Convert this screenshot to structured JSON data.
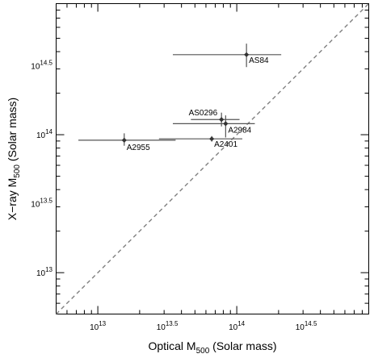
{
  "chart_data": {
    "type": "scatter",
    "title": "",
    "xlabel": {
      "base": "Optical M",
      "sub": "500",
      "rest": " (Solar mass)"
    },
    "ylabel": {
      "base": "X−ray M",
      "sub": "500",
      "rest": " (Solar mass)"
    },
    "x_scale": "log10",
    "y_scale": "log10",
    "xlim_log10": [
      12.7,
      14.95
    ],
    "ylim_log10": [
      12.7,
      14.95
    ],
    "grid": false,
    "legend": "none",
    "reference_line": {
      "style": "dashed",
      "color": "#808080",
      "relation": "y = x"
    },
    "x_ticks": [
      {
        "value_log10": 13.0,
        "base": "10",
        "exp": "13"
      },
      {
        "value_log10": 13.5,
        "base": "10",
        "exp": "13.5"
      },
      {
        "value_log10": 14.0,
        "base": "10",
        "exp": "14"
      },
      {
        "value_log10": 14.5,
        "base": "10",
        "exp": "14.5"
      }
    ],
    "y_ticks": [
      {
        "value_log10": 13.0,
        "base": "10",
        "exp": "13"
      },
      {
        "value_log10": 13.5,
        "base": "10",
        "exp": "13.5"
      },
      {
        "value_log10": 14.0,
        "base": "10",
        "exp": "14"
      },
      {
        "value_log10": 14.5,
        "base": "10",
        "exp": "14.5"
      }
    ],
    "points": [
      {
        "name": "AS84",
        "x": 14.07,
        "x_err": [
          13.54,
          14.32
        ],
        "y": 14.58,
        "y_err": [
          14.49,
          14.66
        ]
      },
      {
        "name": "AS0296",
        "x": 13.89,
        "x_err": [
          13.67,
          14.02
        ],
        "y": 14.11,
        "y_err": [
          14.06,
          14.16
        ]
      },
      {
        "name": "A2984",
        "x": 13.92,
        "x_err": [
          13.54,
          14.13
        ],
        "y": 14.08,
        "y_err": [
          13.98,
          14.14
        ]
      },
      {
        "name": "A2401",
        "x": 13.82,
        "x_err": [
          13.44,
          14.04
        ],
        "y": 13.97,
        "y_err": [
          13.95,
          13.99
        ]
      },
      {
        "name": "A2955",
        "x": 13.19,
        "x_err": [
          12.86,
          13.56
        ],
        "y": 13.96,
        "y_err": [
          13.92,
          14.01
        ]
      }
    ],
    "point_color": "#555555"
  }
}
